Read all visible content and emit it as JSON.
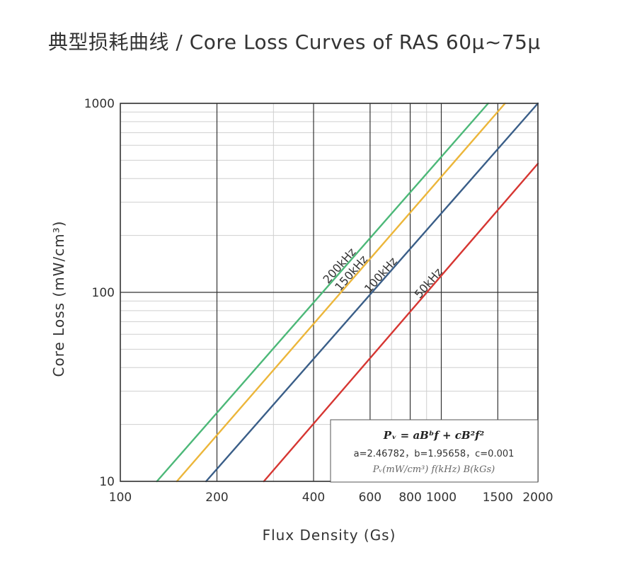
{
  "title": "典型损耗曲线 / Core Loss Curves of RAS 60μ~75μ",
  "chart_data": {
    "type": "line",
    "xscale": "log",
    "yscale": "log",
    "xlim": [
      100,
      2000
    ],
    "ylim": [
      10,
      1000
    ],
    "xlabel": "Flux Density (Gs)",
    "ylabel": "Core Loss (mW/cm³)",
    "x_ticks": [
      100,
      200,
      400,
      600,
      800,
      1000,
      1500,
      2000
    ],
    "x_tick_labels": [
      "100",
      "200",
      "400",
      "600",
      "800",
      "1000",
      "1500",
      "2000"
    ],
    "y_ticks": [
      10,
      100,
      1000
    ],
    "y_tick_labels": [
      "10",
      "100",
      "1000"
    ],
    "grid": true,
    "series": [
      {
        "name": "200kHz",
        "color": "#4cb878",
        "x": [
          130,
          1400
        ],
        "y": [
          10,
          1000
        ]
      },
      {
        "name": "150kHz",
        "color": "#ecb63a",
        "x": [
          150,
          1580
        ],
        "y": [
          10,
          1000
        ]
      },
      {
        "name": "100kHz",
        "color": "#3a5e88",
        "x": [
          185,
          2000
        ],
        "y": [
          10,
          1000
        ]
      },
      {
        "name": "50kHz",
        "color": "#d63632",
        "x": [
          280,
          2000
        ],
        "y": [
          10,
          480
        ]
      }
    ],
    "formula": {
      "equation": "Pᵥ = aBᵇf + cB²f²",
      "coefficients": "a=2.46782，b=1.95658，c=0.001",
      "units": "Pᵥ(mW/cm³) f(kHz) B(kGs)"
    }
  }
}
